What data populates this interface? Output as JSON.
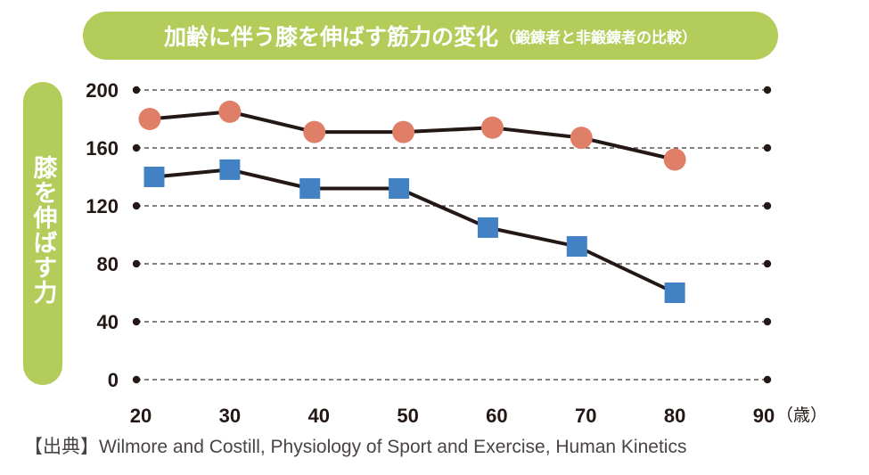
{
  "title": {
    "main": "加齢に伴う膝を伸ばす筋力の変化",
    "sub": "（鍛錬者と非鍛錬者の比較）"
  },
  "source": "【出典】Wilmore and Costill, Physiology of Sport and Exercise, Human Kinetics",
  "colors": {
    "accent": "#b3cc5a",
    "trained": "#e07f67",
    "untrained": "#4281c4",
    "line": "#231815"
  },
  "chart_data": {
    "type": "line",
    "title": "加齢に伴う膝を伸ばす筋力の変化（鍛錬者と非鍛錬者の比較）",
    "xlabel": "（歳）",
    "ylabel": "膝を伸ばす力",
    "xlim": [
      20,
      90
    ],
    "ylim": [
      0,
      200
    ],
    "x_ticks": [
      20,
      30,
      40,
      50,
      60,
      70,
      80,
      90
    ],
    "x_tick_labels": [
      "20",
      "30",
      "40",
      "50",
      "60",
      "70",
      "80",
      "90"
    ],
    "y_ticks": [
      0,
      40,
      80,
      120,
      160,
      200
    ],
    "y_tick_labels": [
      "0",
      "40",
      "80",
      "120",
      "160",
      "200"
    ],
    "grid": "horizontal dashed",
    "series": [
      {
        "name": "鍛錬者",
        "marker": "circle",
        "color": "#e07f67",
        "x": [
          21,
          30,
          39.5,
          49.5,
          59.5,
          69.5,
          80
        ],
        "values": [
          180,
          185,
          171,
          171,
          174,
          167,
          152
        ]
      },
      {
        "name": "非鍛錬者",
        "marker": "square",
        "color": "#4281c4",
        "x": [
          21.5,
          30,
          39,
          49,
          59,
          69,
          80
        ],
        "values": [
          140,
          145,
          132,
          132,
          105,
          92,
          60
        ]
      }
    ]
  }
}
